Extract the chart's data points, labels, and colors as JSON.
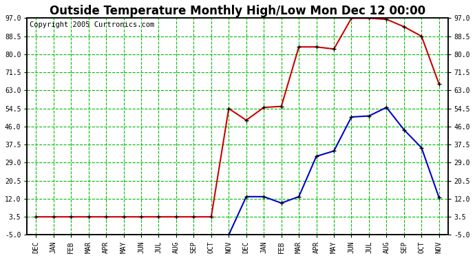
{
  "title": "Outside Temperature Monthly High/Low Mon Dec 12 00:00",
  "copyright": "Copyright 2005 Curtronics.com",
  "x_labels": [
    "DEC",
    "JAN",
    "FEB",
    "MAR",
    "APR",
    "MAY",
    "JUN",
    "JUL",
    "AUG",
    "SEP",
    "OCT",
    "NOV",
    "DEC",
    "JAN",
    "FEB",
    "MAR",
    "APR",
    "MAY",
    "JUN",
    "JUL",
    "AUG",
    "SEP",
    "OCT",
    "NOV"
  ],
  "ylim": [
    -5.0,
    97.0
  ],
  "yticks": [
    -5.0,
    3.5,
    12.0,
    20.5,
    29.0,
    37.5,
    46.0,
    54.5,
    63.0,
    71.5,
    80.0,
    88.5,
    97.0
  ],
  "red_data": [
    3.5,
    3.5,
    3.5,
    3.5,
    3.5,
    3.5,
    3.5,
    3.5,
    3.5,
    3.5,
    3.5,
    54.5,
    49.0,
    55.0,
    55.5,
    83.5,
    83.5,
    82.5,
    97.0,
    97.0,
    96.5,
    93.0,
    88.5,
    66.0
  ],
  "blue_data": [
    null,
    null,
    null,
    null,
    null,
    null,
    null,
    null,
    null,
    null,
    null,
    -5.0,
    13.0,
    13.0,
    10.0,
    13.0,
    32.0,
    34.5,
    50.5,
    51.0,
    55.0,
    44.5,
    36.0,
    12.5
  ],
  "bg_color": "#ffffff",
  "plot_bg": "#ffffff",
  "grid_color": "#00bb00",
  "red_color": "#cc0000",
  "blue_color": "#0000cc",
  "title_fontsize": 12,
  "copyright_fontsize": 7.5
}
